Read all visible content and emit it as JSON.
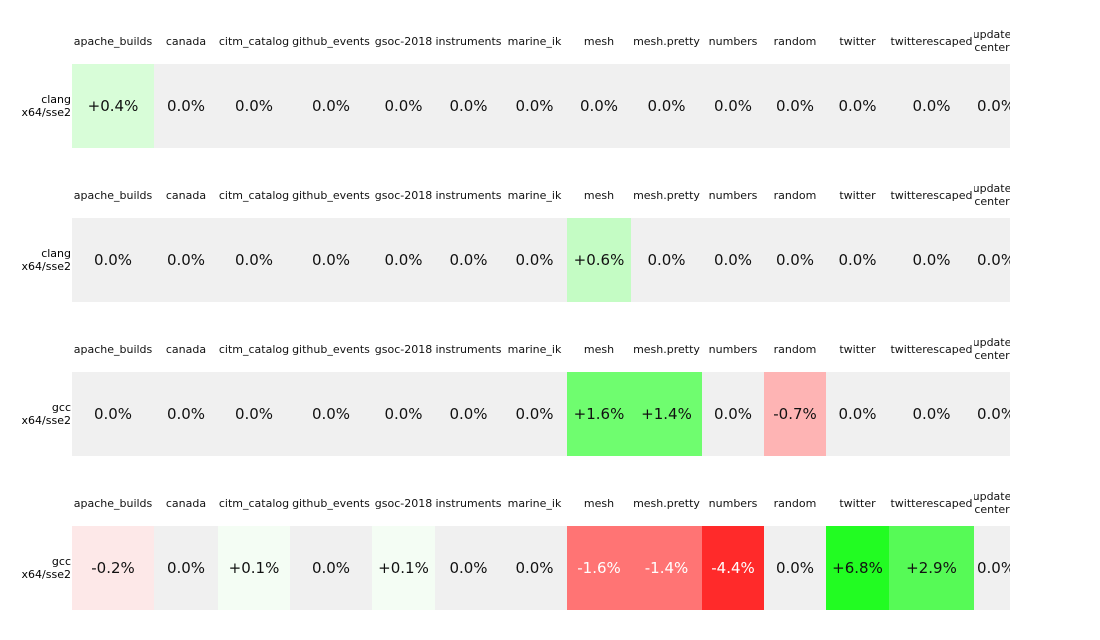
{
  "panels": [
    {
      "row_label": "clang\nx64/sse2",
      "columns": [
        "apache_builds",
        "canada",
        "citm_catalog",
        "github_events",
        "gsoc-2018",
        "instruments",
        "marine_ik",
        "mesh",
        "mesh.pretty",
        "numbers",
        "random",
        "twitter",
        "twitterescaped",
        "update\ncenter"
      ],
      "cells": [
        "+0.4%",
        "0.0%",
        "0.0%",
        "0.0%",
        "0.0%",
        "0.0%",
        "0.0%",
        "0.0%",
        "0.0%",
        "0.0%",
        "0.0%",
        "0.0%",
        "0.0%",
        "0.0%"
      ],
      "colors": [
        "#d8fdd8",
        "#f0f0f0",
        "#f0f0f0",
        "#f0f0f0",
        "#f0f0f0",
        "#f0f0f0",
        "#f0f0f0",
        "#f0f0f0",
        "#f0f0f0",
        "#f0f0f0",
        "#f0f0f0",
        "#f0f0f0",
        "#f0f0f0",
        "#f0f0f0"
      ]
    },
    {
      "row_label": "clang\nx64/sse2",
      "columns": [
        "apache_builds",
        "canada",
        "citm_catalog",
        "github_events",
        "gsoc-2018",
        "instruments",
        "marine_ik",
        "mesh",
        "mesh.pretty",
        "numbers",
        "random",
        "twitter",
        "twitterescaped",
        "update\ncenter"
      ],
      "cells": [
        "0.0%",
        "0.0%",
        "0.0%",
        "0.0%",
        "0.0%",
        "0.0%",
        "0.0%",
        "+0.6%",
        "0.0%",
        "0.0%",
        "0.0%",
        "0.0%",
        "0.0%",
        "0.0%"
      ],
      "colors": [
        "#f0f0f0",
        "#f0f0f0",
        "#f0f0f0",
        "#f0f0f0",
        "#f0f0f0",
        "#f0f0f0",
        "#f0f0f0",
        "#c4fcc4",
        "#f0f0f0",
        "#f0f0f0",
        "#f0f0f0",
        "#f0f0f0",
        "#f0f0f0",
        "#f0f0f0"
      ]
    },
    {
      "row_label": "gcc\nx64/sse2",
      "columns": [
        "apache_builds",
        "canada",
        "citm_catalog",
        "github_events",
        "gsoc-2018",
        "instruments",
        "marine_ik",
        "mesh",
        "mesh.pretty",
        "numbers",
        "random",
        "twitter",
        "twitterescaped",
        "update\ncenter"
      ],
      "cells": [
        "0.0%",
        "0.0%",
        "0.0%",
        "0.0%",
        "0.0%",
        "0.0%",
        "0.0%",
        "+1.6%",
        "+1.4%",
        "0.0%",
        "-0.7%",
        "0.0%",
        "0.0%",
        "0.0%"
      ],
      "colors": [
        "#f0f0f0",
        "#f0f0f0",
        "#f0f0f0",
        "#f0f0f0",
        "#f0f0f0",
        "#f0f0f0",
        "#f0f0f0",
        "#6ffd6f",
        "#6ffd6f",
        "#f0f0f0",
        "#feb4b4",
        "#f0f0f0",
        "#f0f0f0",
        "#f0f0f0"
      ]
    },
    {
      "row_label": "gcc\nx64/sse2",
      "columns": [
        "apache_builds",
        "canada",
        "citm_catalog",
        "github_events",
        "gsoc-2018",
        "instruments",
        "marine_ik",
        "mesh",
        "mesh.pretty",
        "numbers",
        "random",
        "twitter",
        "twitterescaped",
        "update\ncenter"
      ],
      "cells": [
        "-0.2%",
        "0.0%",
        "+0.1%",
        "0.0%",
        "+0.1%",
        "0.0%",
        "0.0%",
        "-1.6%",
        "-1.4%",
        "-4.4%",
        "0.0%",
        "+6.8%",
        "+2.9%",
        "0.0%"
      ],
      "colors": [
        "#fde8e8",
        "#f0f0f0",
        "#f4fdf4",
        "#f0f0f0",
        "#f4fdf4",
        "#f0f0f0",
        "#f0f0f0",
        "#ff7474",
        "#ff7474",
        "#ff2a2a",
        "#f0f0f0",
        "#22fc22",
        "#56fa56",
        "#f0f0f0"
      ]
    }
  ]
}
